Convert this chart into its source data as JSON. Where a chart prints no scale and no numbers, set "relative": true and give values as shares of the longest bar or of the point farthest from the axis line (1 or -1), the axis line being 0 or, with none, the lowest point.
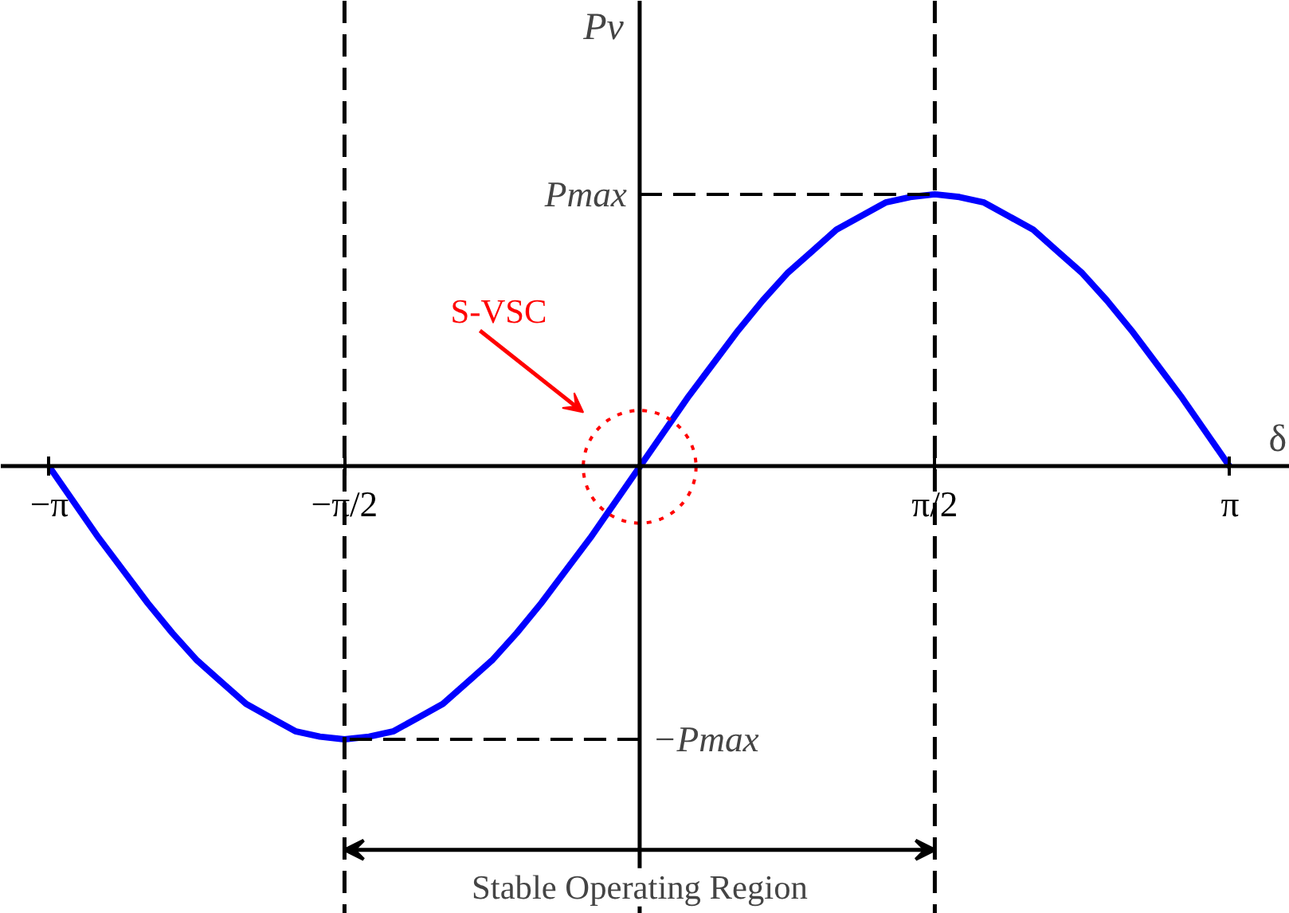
{
  "chart_data": {
    "type": "line",
    "xlabel": "δ",
    "ylabel": "Pv",
    "x": [
      -3.1416,
      -3.0107,
      -2.8798,
      -2.7489,
      -2.618,
      -2.4871,
      -2.3562,
      -2.2253,
      -2.0944,
      -1.9635,
      -1.8326,
      -1.7017,
      -1.5708,
      -1.4399,
      -1.309,
      -1.1781,
      -1.0472,
      -0.9163,
      -0.7854,
      -0.6545,
      -0.5236,
      -0.3927,
      -0.2618,
      -0.1309,
      0,
      0.1309,
      0.2618,
      0.3927,
      0.5236,
      0.6545,
      0.7854,
      0.9163,
      1.0472,
      1.1781,
      1.309,
      1.4399,
      1.5708,
      1.7017,
      1.8326,
      1.9635,
      2.0944,
      2.2253,
      2.3562,
      2.4871,
      2.618,
      2.7489,
      2.8798,
      3.0107,
      3.1416
    ],
    "series": [
      {
        "color": "#0000ff",
        "values": [
          0,
          -0.13,
          -0.26,
          -0.38,
          -0.5,
          -0.61,
          -0.71,
          -0.79,
          -0.87,
          -0.92,
          -0.97,
          -0.99,
          -1,
          -0.99,
          -0.97,
          -0.92,
          -0.87,
          -0.79,
          -0.71,
          -0.61,
          -0.5,
          -0.38,
          -0.26,
          -0.13,
          0,
          0.13,
          0.26,
          0.38,
          0.5,
          0.61,
          0.71,
          0.79,
          0.87,
          0.92,
          0.97,
          0.99,
          1,
          0.99,
          0.97,
          0.92,
          0.87,
          0.79,
          0.71,
          0.61,
          0.5,
          0.38,
          0.26,
          0.13,
          0
        ]
      }
    ],
    "relative": true,
    "xlim": [
      -3.4,
      3.46
    ],
    "xticks": [
      {
        "value": -3.1416,
        "label": "−π"
      },
      {
        "value": -1.5708,
        "label": "−π/2"
      },
      {
        "value": 1.5708,
        "label": "π/2"
      },
      {
        "value": 3.1416,
        "label": "π"
      }
    ],
    "ref_lines": [
      {
        "axis": "x",
        "value": -1.5708,
        "line_style": "dashed",
        "color": "#000000"
      },
      {
        "axis": "x",
        "value": 1.5708,
        "line_style": "dashed",
        "color": "#000000"
      }
    ],
    "annotations": [
      "S-VSC",
      "Stable Operating Region",
      {
        "text": "Pmax",
        "x": 1.5708,
        "y": 1
      },
      {
        "text": "−Pmax",
        "x": -1.5708,
        "y": -1
      }
    ],
    "marker": "none",
    "line_style": "solid"
  }
}
